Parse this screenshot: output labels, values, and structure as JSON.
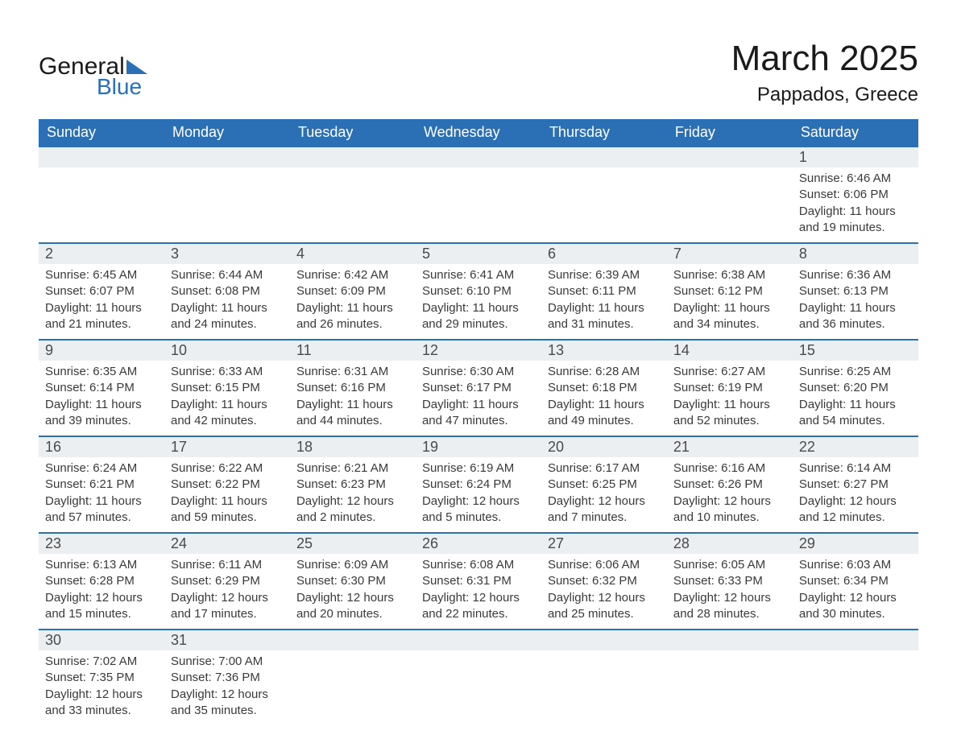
{
  "logo": {
    "text_main": "General",
    "text_sub": "Blue",
    "accent_color": "#2b70b5"
  },
  "title": {
    "month": "March 2025",
    "location": "Pappados, Greece"
  },
  "style": {
    "header_bg": "#2b70b5",
    "header_fg": "#ffffff",
    "daynum_bg": "#eceff1",
    "row_border": "#2b70b5",
    "fontsize_month": 44,
    "fontsize_location": 24,
    "fontsize_daynum": 18,
    "fontsize_body": 15
  },
  "weekdays": [
    "Sunday",
    "Monday",
    "Tuesday",
    "Wednesday",
    "Thursday",
    "Friday",
    "Saturday"
  ],
  "labels": {
    "sunrise": "Sunrise:",
    "sunset": "Sunset:",
    "daylight": "Daylight:"
  },
  "weeks": [
    [
      null,
      null,
      null,
      null,
      null,
      null,
      {
        "n": "1",
        "sunrise": "6:46 AM",
        "sunset": "6:06 PM",
        "daylight": "11 hours and 19 minutes."
      }
    ],
    [
      {
        "n": "2",
        "sunrise": "6:45 AM",
        "sunset": "6:07 PM",
        "daylight": "11 hours and 21 minutes."
      },
      {
        "n": "3",
        "sunrise": "6:44 AM",
        "sunset": "6:08 PM",
        "daylight": "11 hours and 24 minutes."
      },
      {
        "n": "4",
        "sunrise": "6:42 AM",
        "sunset": "6:09 PM",
        "daylight": "11 hours and 26 minutes."
      },
      {
        "n": "5",
        "sunrise": "6:41 AM",
        "sunset": "6:10 PM",
        "daylight": "11 hours and 29 minutes."
      },
      {
        "n": "6",
        "sunrise": "6:39 AM",
        "sunset": "6:11 PM",
        "daylight": "11 hours and 31 minutes."
      },
      {
        "n": "7",
        "sunrise": "6:38 AM",
        "sunset": "6:12 PM",
        "daylight": "11 hours and 34 minutes."
      },
      {
        "n": "8",
        "sunrise": "6:36 AM",
        "sunset": "6:13 PM",
        "daylight": "11 hours and 36 minutes."
      }
    ],
    [
      {
        "n": "9",
        "sunrise": "6:35 AM",
        "sunset": "6:14 PM",
        "daylight": "11 hours and 39 minutes."
      },
      {
        "n": "10",
        "sunrise": "6:33 AM",
        "sunset": "6:15 PM",
        "daylight": "11 hours and 42 minutes."
      },
      {
        "n": "11",
        "sunrise": "6:31 AM",
        "sunset": "6:16 PM",
        "daylight": "11 hours and 44 minutes."
      },
      {
        "n": "12",
        "sunrise": "6:30 AM",
        "sunset": "6:17 PM",
        "daylight": "11 hours and 47 minutes."
      },
      {
        "n": "13",
        "sunrise": "6:28 AM",
        "sunset": "6:18 PM",
        "daylight": "11 hours and 49 minutes."
      },
      {
        "n": "14",
        "sunrise": "6:27 AM",
        "sunset": "6:19 PM",
        "daylight": "11 hours and 52 minutes."
      },
      {
        "n": "15",
        "sunrise": "6:25 AM",
        "sunset": "6:20 PM",
        "daylight": "11 hours and 54 minutes."
      }
    ],
    [
      {
        "n": "16",
        "sunrise": "6:24 AM",
        "sunset": "6:21 PM",
        "daylight": "11 hours and 57 minutes."
      },
      {
        "n": "17",
        "sunrise": "6:22 AM",
        "sunset": "6:22 PM",
        "daylight": "11 hours and 59 minutes."
      },
      {
        "n": "18",
        "sunrise": "6:21 AM",
        "sunset": "6:23 PM",
        "daylight": "12 hours and 2 minutes."
      },
      {
        "n": "19",
        "sunrise": "6:19 AM",
        "sunset": "6:24 PM",
        "daylight": "12 hours and 5 minutes."
      },
      {
        "n": "20",
        "sunrise": "6:17 AM",
        "sunset": "6:25 PM",
        "daylight": "12 hours and 7 minutes."
      },
      {
        "n": "21",
        "sunrise": "6:16 AM",
        "sunset": "6:26 PM",
        "daylight": "12 hours and 10 minutes."
      },
      {
        "n": "22",
        "sunrise": "6:14 AM",
        "sunset": "6:27 PM",
        "daylight": "12 hours and 12 minutes."
      }
    ],
    [
      {
        "n": "23",
        "sunrise": "6:13 AM",
        "sunset": "6:28 PM",
        "daylight": "12 hours and 15 minutes."
      },
      {
        "n": "24",
        "sunrise": "6:11 AM",
        "sunset": "6:29 PM",
        "daylight": "12 hours and 17 minutes."
      },
      {
        "n": "25",
        "sunrise": "6:09 AM",
        "sunset": "6:30 PM",
        "daylight": "12 hours and 20 minutes."
      },
      {
        "n": "26",
        "sunrise": "6:08 AM",
        "sunset": "6:31 PM",
        "daylight": "12 hours and 22 minutes."
      },
      {
        "n": "27",
        "sunrise": "6:06 AM",
        "sunset": "6:32 PM",
        "daylight": "12 hours and 25 minutes."
      },
      {
        "n": "28",
        "sunrise": "6:05 AM",
        "sunset": "6:33 PM",
        "daylight": "12 hours and 28 minutes."
      },
      {
        "n": "29",
        "sunrise": "6:03 AM",
        "sunset": "6:34 PM",
        "daylight": "12 hours and 30 minutes."
      }
    ],
    [
      {
        "n": "30",
        "sunrise": "7:02 AM",
        "sunset": "7:35 PM",
        "daylight": "12 hours and 33 minutes."
      },
      {
        "n": "31",
        "sunrise": "7:00 AM",
        "sunset": "7:36 PM",
        "daylight": "12 hours and 35 minutes."
      },
      null,
      null,
      null,
      null,
      null
    ]
  ]
}
